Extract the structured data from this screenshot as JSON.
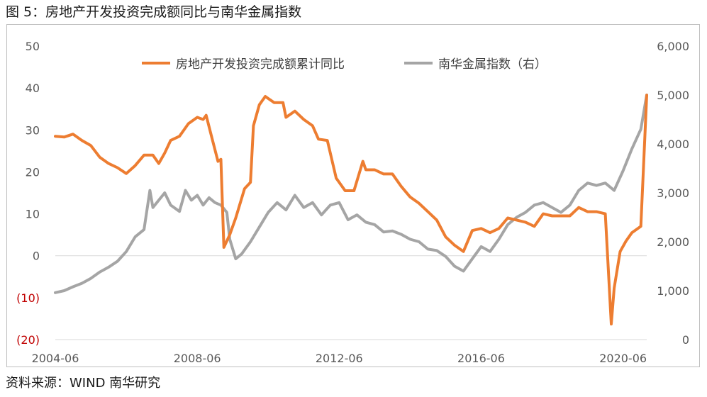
{
  "figure": {
    "title": "图 5：房地产开发投资完成额同比与南华金属指数",
    "source": "资料来源：WIND  南华研究"
  },
  "colors": {
    "series_left": "#ED7D31",
    "series_right": "#A5A5A5",
    "negative_tick": "#C00000",
    "axis_text": "#595959"
  },
  "chart_data": {
    "type": "line",
    "title": "",
    "xlabel": "",
    "ylabel": "",
    "legend_position": "top",
    "grid": false,
    "x_tick_labels": [
      "2004-06",
      "2008-06",
      "2012-06",
      "2016-06",
      "2020-06"
    ],
    "x_range": [
      "2004-06",
      "2021-02"
    ],
    "y_left": {
      "range": [
        -20,
        50
      ],
      "ticks": [
        50,
        40,
        30,
        20,
        10,
        0,
        -10,
        -20
      ],
      "tick_labels": [
        "50",
        "40",
        "30",
        "20",
        "10",
        "0",
        "(10)",
        "(20)"
      ]
    },
    "y_right": {
      "range": [
        0,
        6000
      ],
      "ticks": [
        6000,
        5000,
        4000,
        3000,
        2000,
        1000,
        0
      ],
      "tick_labels": [
        "6,000",
        "5,000",
        "4,000",
        "3,000",
        "2,000",
        "1,000",
        "0"
      ]
    },
    "series": [
      {
        "name": "房地产开发投资完成额累计同比",
        "axis": "left",
        "points": [
          [
            "2004-06",
            28.5
          ],
          [
            "2004-09",
            28.3
          ],
          [
            "2004-12",
            29.0
          ],
          [
            "2005-03",
            27.5
          ],
          [
            "2005-06",
            26.3
          ],
          [
            "2005-09",
            23.5
          ],
          [
            "2005-12",
            22.0
          ],
          [
            "2006-03",
            21.0
          ],
          [
            "2006-06",
            19.6
          ],
          [
            "2006-09",
            21.5
          ],
          [
            "2006-12",
            24.0
          ],
          [
            "2007-03",
            24.0
          ],
          [
            "2007-05",
            22.0
          ],
          [
            "2007-07",
            24.5
          ],
          [
            "2007-09",
            27.5
          ],
          [
            "2007-12",
            28.5
          ],
          [
            "2008-03",
            31.5
          ],
          [
            "2008-06",
            33.0
          ],
          [
            "2008-08",
            32.5
          ],
          [
            "2008-09",
            33.5
          ],
          [
            "2008-11",
            28.0
          ],
          [
            "2009-01",
            22.5
          ],
          [
            "2009-02",
            23.0
          ],
          [
            "2009-03",
            2.0
          ],
          [
            "2009-05",
            5.0
          ],
          [
            "2009-07",
            9.0
          ],
          [
            "2009-10",
            16.0
          ],
          [
            "2009-12",
            17.5
          ],
          [
            "2010-01",
            31.0
          ],
          [
            "2010-03",
            36.0
          ],
          [
            "2010-05",
            38.0
          ],
          [
            "2010-08",
            36.5
          ],
          [
            "2010-11",
            36.5
          ],
          [
            "2010-12",
            33.0
          ],
          [
            "2011-03",
            34.5
          ],
          [
            "2011-06",
            32.5
          ],
          [
            "2011-09",
            31.0
          ],
          [
            "2011-11",
            27.8
          ],
          [
            "2012-02",
            27.5
          ],
          [
            "2012-05",
            18.5
          ],
          [
            "2012-08",
            15.5
          ],
          [
            "2012-11",
            15.5
          ],
          [
            "2013-02",
            22.5
          ],
          [
            "2013-03",
            20.5
          ],
          [
            "2013-06",
            20.5
          ],
          [
            "2013-09",
            19.5
          ],
          [
            "2013-12",
            19.5
          ],
          [
            "2014-03",
            16.5
          ],
          [
            "2014-06",
            14.0
          ],
          [
            "2014-09",
            12.5
          ],
          [
            "2014-12",
            10.5
          ],
          [
            "2015-03",
            8.5
          ],
          [
            "2015-06",
            4.5
          ],
          [
            "2015-09",
            2.5
          ],
          [
            "2015-12",
            1.0
          ],
          [
            "2016-03",
            6.0
          ],
          [
            "2016-06",
            6.5
          ],
          [
            "2016-09",
            5.5
          ],
          [
            "2016-12",
            6.5
          ],
          [
            "2017-03",
            9.0
          ],
          [
            "2017-06",
            8.5
          ],
          [
            "2017-09",
            8.0
          ],
          [
            "2017-12",
            7.0
          ],
          [
            "2018-03",
            10.0
          ],
          [
            "2018-06",
            9.5
          ],
          [
            "2018-09",
            9.5
          ],
          [
            "2018-12",
            9.5
          ],
          [
            "2019-03",
            11.5
          ],
          [
            "2019-06",
            10.5
          ],
          [
            "2019-09",
            10.5
          ],
          [
            "2019-12",
            10.0
          ],
          [
            "2020-02",
            -16.3
          ],
          [
            "2020-03",
            -7.7
          ],
          [
            "2020-05",
            1.0
          ],
          [
            "2020-07",
            3.5
          ],
          [
            "2020-09",
            5.5
          ],
          [
            "2020-11",
            6.5
          ],
          [
            "2020-12",
            7.0
          ],
          [
            "2021-02",
            38.3
          ]
        ]
      },
      {
        "name": "南华金属指数（右）",
        "axis": "right",
        "points": [
          [
            "2004-06",
            960
          ],
          [
            "2004-09",
            1000
          ],
          [
            "2004-12",
            1080
          ],
          [
            "2005-03",
            1150
          ],
          [
            "2005-06",
            1250
          ],
          [
            "2005-09",
            1380
          ],
          [
            "2005-12",
            1480
          ],
          [
            "2006-03",
            1600
          ],
          [
            "2006-06",
            1800
          ],
          [
            "2006-09",
            2100
          ],
          [
            "2006-12",
            2250
          ],
          [
            "2007-02",
            3050
          ],
          [
            "2007-03",
            2700
          ],
          [
            "2007-05",
            2850
          ],
          [
            "2007-07",
            3000
          ],
          [
            "2007-09",
            2750
          ],
          [
            "2007-12",
            2620
          ],
          [
            "2008-02",
            3050
          ],
          [
            "2008-04",
            2850
          ],
          [
            "2008-06",
            2950
          ],
          [
            "2008-08",
            2750
          ],
          [
            "2008-10",
            2900
          ],
          [
            "2008-12",
            2800
          ],
          [
            "2009-02",
            2750
          ],
          [
            "2009-04",
            2600
          ],
          [
            "2009-05",
            2050
          ],
          [
            "2009-07",
            1650
          ],
          [
            "2009-09",
            1750
          ],
          [
            "2009-12",
            2000
          ],
          [
            "2010-03",
            2300
          ],
          [
            "2010-06",
            2600
          ],
          [
            "2010-09",
            2800
          ],
          [
            "2010-12",
            2650
          ],
          [
            "2011-03",
            2950
          ],
          [
            "2011-06",
            2700
          ],
          [
            "2011-09",
            2800
          ],
          [
            "2011-12",
            2550
          ],
          [
            "2012-03",
            2750
          ],
          [
            "2012-06",
            2800
          ],
          [
            "2012-09",
            2450
          ],
          [
            "2012-12",
            2550
          ],
          [
            "2013-03",
            2400
          ],
          [
            "2013-06",
            2350
          ],
          [
            "2013-09",
            2200
          ],
          [
            "2013-12",
            2220
          ],
          [
            "2014-03",
            2150
          ],
          [
            "2014-06",
            2050
          ],
          [
            "2014-09",
            2000
          ],
          [
            "2014-12",
            1850
          ],
          [
            "2015-03",
            1820
          ],
          [
            "2015-06",
            1700
          ],
          [
            "2015-09",
            1500
          ],
          [
            "2015-12",
            1400
          ],
          [
            "2016-03",
            1650
          ],
          [
            "2016-06",
            1900
          ],
          [
            "2016-09",
            1800
          ],
          [
            "2016-12",
            2050
          ],
          [
            "2017-03",
            2350
          ],
          [
            "2017-06",
            2500
          ],
          [
            "2017-09",
            2600
          ],
          [
            "2017-12",
            2750
          ],
          [
            "2018-03",
            2800
          ],
          [
            "2018-06",
            2700
          ],
          [
            "2018-09",
            2600
          ],
          [
            "2018-12",
            2750
          ],
          [
            "2019-03",
            3050
          ],
          [
            "2019-06",
            3200
          ],
          [
            "2019-09",
            3150
          ],
          [
            "2019-12",
            3200
          ],
          [
            "2020-03",
            3050
          ],
          [
            "2020-06",
            3450
          ],
          [
            "2020-09",
            3900
          ],
          [
            "2020-12",
            4300
          ],
          [
            "2021-02",
            5000
          ]
        ]
      }
    ]
  }
}
